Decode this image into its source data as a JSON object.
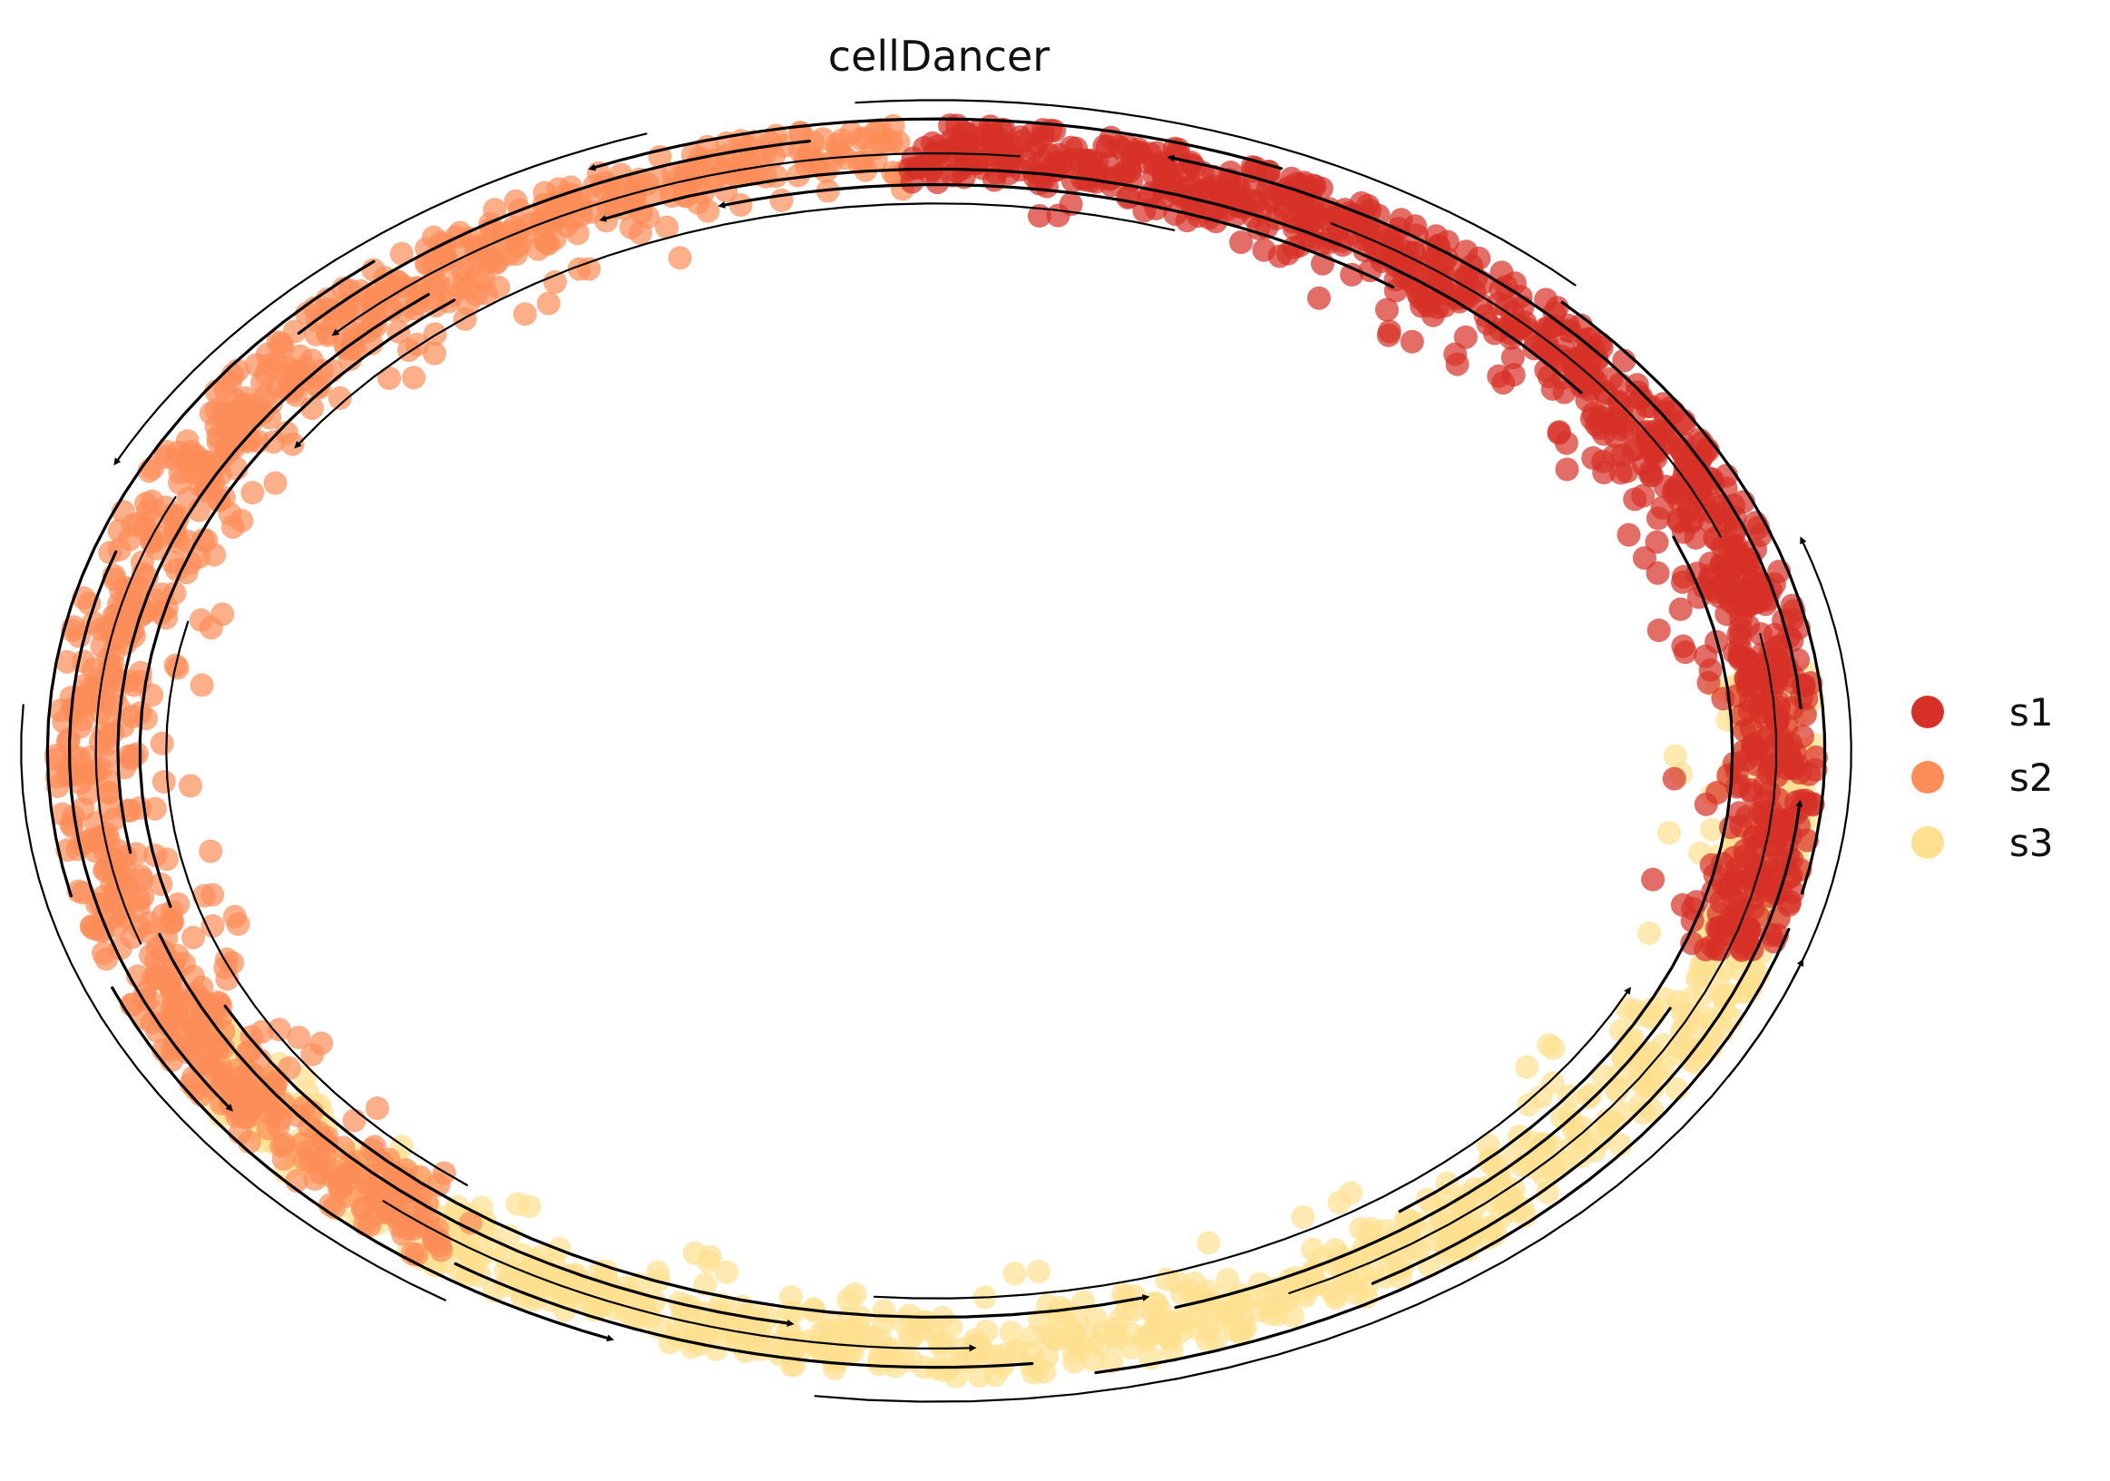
{
  "chart_data": {
    "type": "scatter",
    "title": "cellDancer",
    "xlabel": "",
    "ylabel": "",
    "axes_visible": false,
    "grid": false,
    "overlay": "velocity streamlines with arrowheads (black)",
    "legend_position": "right",
    "xlim": [
      -1.0,
      1.0
    ],
    "ylim": [
      -1.0,
      1.0
    ],
    "series": [
      {
        "name": "s1",
        "color": "#d73027",
        "arc_range_deg": [
          -20,
          92
        ],
        "n_points": 900,
        "note": "cluster s1 occupies the upper-right arc of the ring"
      },
      {
        "name": "s2",
        "color": "#fc8d59",
        "arc_range_deg": [
          92,
          235
        ],
        "n_points": 900,
        "note": "cluster s2 occupies the upper-left and left arc of the ring"
      },
      {
        "name": "s3",
        "color": "#fee090",
        "arc_range_deg": [
          205,
          368
        ],
        "n_points": 900,
        "note": "cluster s3 occupies the bottom and lower-right arc of the ring"
      }
    ],
    "streamlines": {
      "direction": "counter-clockwise",
      "color": "#000000"
    }
  }
}
